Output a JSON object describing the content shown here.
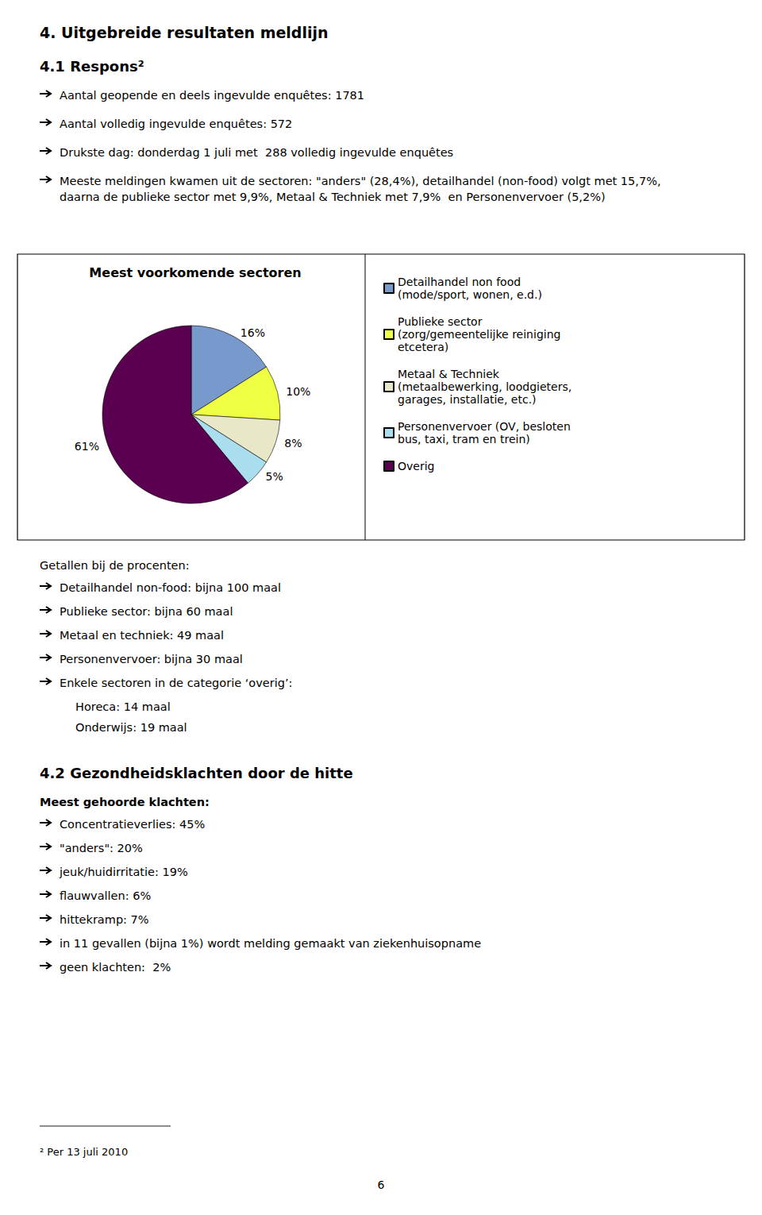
{
  "chart_data": {
    "type": "pie",
    "title": "Meest voorkomende sectoren",
    "categories": [
      "Detailhandel non food\n(mode/sport, wonen, e.d.)",
      "Publieke sector\n(zorg/gemeentelijke reiniging\netcetera)",
      "Metaal & Techniek\n(metaalbewerking, loodgieters,\ngarages, installatie, etc.)",
      "Personenvervoer (OV, besloten\nbus, taxi, tram en trein)",
      "Overig"
    ],
    "values": [
      16,
      10,
      8,
      5,
      61
    ],
    "value_labels": [
      "16%",
      "10%",
      "8%",
      "5%",
      "61%"
    ],
    "colors": [
      "#7799CC",
      "#EEFF44",
      "#E8E8C8",
      "#AADDEE",
      "#5B0050"
    ],
    "data_labels": true,
    "legend": "right",
    "annotations": [
      "4. Uitgebreide resultaten meldlijn",
      "4.1 Respons²",
      "Aantal geopende en deels ingevulde enquêtes: 1781",
      "Aantal volledig ingevulde enquêtes: 572",
      "Drukste dag: donderdag 1 juli met  288 volledig ingevulde enquêtes",
      "Meeste meldingen kwamen uit de sectoren: \"anders\" (28,4%), detailhandel (non-food) volgt met 15,7%,\ndaarna de publieke sector met 9,9%, Metaal & Techniek met 7,9%  en Personenvervoer (5,2%)",
      "Getallen bij de procenten:",
      "Detailhandel non-food: bijna 100 maal",
      "Publieke sector: bijna 60 maal",
      "Metaal en techniek: 49 maal",
      "Personenvervoer: bijna 30 maal",
      "Enkele sectoren in de categorie ‘overig’:",
      "Horeca: 14 maal",
      "Onderwijs: 19 maal",
      "4.2 Gezondheidsklachten door de hitte",
      "Meest gehoorde klachten:",
      "Concentratieverlies: 45%",
      "\"anders\": 20%",
      "jeuk/huidirritatie: 19%",
      "flauwvallen: 6%",
      "hittekramp: 7%",
      "in 11 gevallen (bijna 1%) wordt melding gemaakt van ziekenhuisopname",
      "geen klachten:  2%",
      "² Per 13 juli 2010",
      "6"
    ]
  }
}
